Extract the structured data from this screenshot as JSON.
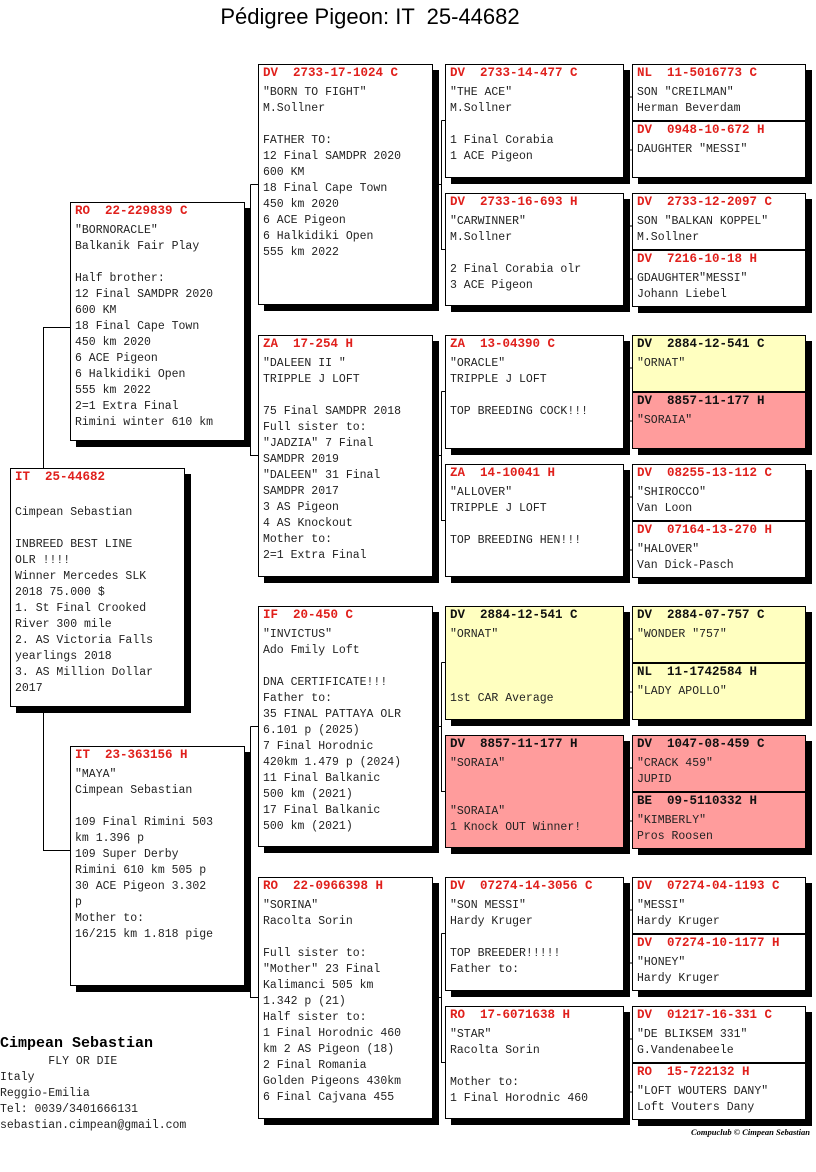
{
  "title": "Pédigree Pigeon: IT  25-44682",
  "colors": {
    "ring_red": "#e0201c",
    "yellow": "#ffffc0",
    "pink": "#ff9c9c"
  },
  "boxes": [
    {
      "id": "subject",
      "ring": "IT  25-44682",
      "ring_color": "red",
      "bg": "white",
      "lines": [
        "",
        "Cimpean Sebastian",
        "",
        "INBREED BEST LINE",
        "OLR !!!!",
        "Winner Mercedes SLK",
        "2018 75.000 $",
        "1. St Final Crooked",
        "River 300 mile",
        "2. AS Victoria Falls",
        "yearlings 2018",
        "3. AS Million Dollar",
        "2017"
      ]
    },
    {
      "id": "sire",
      "ring": "RO  22-229839 C",
      "ring_color": "red",
      "bg": "white",
      "lines": [
        "\"BORNORACLE\"",
        "Balkanik Fair Play",
        "",
        "Half brother:",
        "12 Final SAMDPR 2020",
        "600 KM",
        "18 Final Cape Town",
        "450 km 2020",
        "6 ACE Pigeon",
        "6 Halkidiki Open",
        "555 km 2022",
        "2=1 Extra Final",
        "Rimini winter 610 km"
      ]
    },
    {
      "id": "dam",
      "ring": "IT  23-363156 H",
      "ring_color": "red",
      "bg": "white",
      "lines": [
        "\"MAYA\"",
        "Cimpean Sebastian",
        "",
        "109 Final Rimini 503",
        "km 1.396 p",
        "109 Super Derby",
        "Rimini 610 km 505 p",
        "30 ACE Pigeon 3.302",
        "p",
        "Mother to:",
        "16/215 km 1.818 pige"
      ]
    },
    {
      "id": "ss",
      "ring": "DV  2733-17-1024 C",
      "ring_color": "red",
      "bg": "white",
      "lines": [
        "\"BORN TO FIGHT\"",
        "M.Sollner",
        "",
        "FATHER TO:",
        "12 Final SAMDPR 2020",
        "600 KM",
        "18 Final Cape Town",
        "450 km 2020",
        "6 ACE Pigeon",
        "6 Halkidiki Open",
        "555 km 2022"
      ]
    },
    {
      "id": "sd",
      "ring": "ZA  17-254 H",
      "ring_color": "red",
      "bg": "white",
      "lines": [
        "\"DALEEN II \"",
        "TRIPPLE J LOFT",
        "",
        "75 Final SAMDPR 2018",
        "Full sister to:",
        "\"JADZIA\" 7 Final",
        "SAMDPR 2019",
        "\"DALEEN\" 31 Final",
        "SAMDPR 2017",
        "3 AS Pigeon",
        "4 AS Knockout",
        "Mother to:",
        "2=1 Extra Final"
      ]
    },
    {
      "id": "ds",
      "ring": "IF  20-450 C",
      "ring_color": "red",
      "bg": "white",
      "lines": [
        "\"INVICTUS\"",
        "Ado Fmily Loft",
        "",
        "DNA CERTIFICATE!!!",
        "Father to:",
        "35 FINAL PATTAYA OLR",
        "6.101 p (2025)",
        "7 Final Horodnic",
        "420km 1.479 p (2024)",
        "11 Final Balkanic",
        "500 km (2021)",
        "17 Final Balkanic",
        "500 km (2021)"
      ]
    },
    {
      "id": "dd",
      "ring": "RO  22-0966398 H",
      "ring_color": "red",
      "bg": "white",
      "lines": [
        "\"SORINA\"",
        "Racolta Sorin",
        "",
        "Full sister to:",
        "\"Mother\" 23 Final",
        "Kalimanci 505 km",
        "1.342 p (21)",
        "Half sister to:",
        "1 Final Horodnic 460",
        "km 2 AS Pigeon (18)",
        "2 Final Romania",
        "Golden Pigeons 430km",
        "6 Final Cajvana 455"
      ]
    },
    {
      "id": "sss",
      "ring": "DV  2733-14-477 C",
      "ring_color": "red",
      "bg": "white",
      "lines": [
        "\"THE ACE\"",
        "M.Sollner",
        "",
        "1 Final Corabia",
        "1 ACE Pigeon"
      ]
    },
    {
      "id": "ssd",
      "ring": "DV  2733-16-693 H",
      "ring_color": "red",
      "bg": "white",
      "lines": [
        "\"CARWINNER\"",
        "M.Sollner",
        "",
        "2 Final Corabia olr",
        "3 ACE Pigeon"
      ]
    },
    {
      "id": "sds",
      "ring": "ZA  13-04390 C",
      "ring_color": "red",
      "bg": "white",
      "lines": [
        "\"ORACLE\"",
        "TRIPPLE J LOFT",
        "",
        "TOP BREEDING COCK!!!"
      ]
    },
    {
      "id": "sdd",
      "ring": "ZA  14-10041 H",
      "ring_color": "red",
      "bg": "white",
      "lines": [
        "\"ALLOVER\"",
        "TRIPPLE J LOFT",
        "",
        "TOP BREEDING HEN!!!"
      ]
    },
    {
      "id": "dss",
      "ring": "DV  2884-12-541 C",
      "ring_color": "black",
      "bg": "yellow",
      "lines": [
        "\"ORNAT\"",
        "",
        "",
        "",
        "1st CAR Average"
      ]
    },
    {
      "id": "dsd",
      "ring": "DV  8857-11-177 H",
      "ring_color": "black",
      "bg": "pink",
      "lines": [
        "\"SORAIA\"",
        "",
        "",
        "\"SORAIA\"",
        "1 Knock OUT Winner!"
      ]
    },
    {
      "id": "dds",
      "ring": "DV  07274-14-3056 C",
      "ring_color": "red",
      "bg": "white",
      "lines": [
        "\"SON MESSI\"",
        "Hardy Kruger",
        "",
        "TOP BREEDER!!!!!",
        "Father to:"
      ]
    },
    {
      "id": "ddd",
      "ring": "RO  17-6071638 H",
      "ring_color": "red",
      "bg": "white",
      "lines": [
        "\"STAR\"",
        "Racolta Sorin",
        "",
        "Mother to:",
        "1 Final Horodnic 460"
      ]
    },
    {
      "id": "ssss",
      "ring": "NL  11-5016773 C",
      "ring_color": "red",
      "bg": "white",
      "lines": [
        "SON \"CREILMAN\"",
        "Herman Beverdam"
      ]
    },
    {
      "id": "sssd",
      "ring": "DV  0948-10-672 H",
      "ring_color": "red",
      "bg": "white",
      "lines": [
        "DAUGHTER \"MESSI\""
      ]
    },
    {
      "id": "ssds",
      "ring": "DV  2733-12-2097 C",
      "ring_color": "red",
      "bg": "white",
      "lines": [
        "SON \"BALKAN KOPPEL\"",
        "M.Sollner"
      ]
    },
    {
      "id": "ssdd",
      "ring": "DV  7216-10-18 H",
      "ring_color": "red",
      "bg": "white",
      "lines": [
        "GDAUGHTER\"MESSI\"",
        "Johann Liebel"
      ]
    },
    {
      "id": "sdss",
      "ring": "DV  2884-12-541 C",
      "ring_color": "black",
      "bg": "yellow",
      "lines": [
        "\"ORNAT\""
      ]
    },
    {
      "id": "sdsd",
      "ring": "DV  8857-11-177 H",
      "ring_color": "black",
      "bg": "pink",
      "lines": [
        "\"SORAIA\""
      ]
    },
    {
      "id": "sdds",
      "ring": "DV  08255-13-112 C",
      "ring_color": "red",
      "bg": "white",
      "lines": [
        "\"SHIROCCO\"",
        "Van Loon"
      ]
    },
    {
      "id": "sddd",
      "ring": "DV  07164-13-270 H",
      "ring_color": "red",
      "bg": "white",
      "lines": [
        "\"HALOVER\"",
        "Van Dick-Pasch"
      ]
    },
    {
      "id": "dsss",
      "ring": "DV  2884-07-757 C",
      "ring_color": "black",
      "bg": "yellow",
      "lines": [
        "\"WONDER \"757\""
      ]
    },
    {
      "id": "dssd",
      "ring": "NL  11-1742584 H",
      "ring_color": "black",
      "bg": "yellow",
      "lines": [
        "\"LADY APOLLO\""
      ]
    },
    {
      "id": "dsds",
      "ring": "DV  1047-08-459 C",
      "ring_color": "black",
      "bg": "pink",
      "lines": [
        "\"CRACK 459\"",
        "JUPID"
      ]
    },
    {
      "id": "dsdd",
      "ring": "BE  09-5110332 H",
      "ring_color": "black",
      "bg": "pink",
      "lines": [
        "\"KIMBERLY\"",
        "Pros Roosen"
      ]
    },
    {
      "id": "ddss",
      "ring": "DV  07274-04-1193 C",
      "ring_color": "red",
      "bg": "white",
      "lines": [
        "\"MESSI\"",
        "Hardy Kruger"
      ]
    },
    {
      "id": "ddsd",
      "ring": "DV  07274-10-1177 H",
      "ring_color": "red",
      "bg": "white",
      "lines": [
        "\"HONEY\"",
        "Hardy Kruger"
      ]
    },
    {
      "id": "ddds",
      "ring": "DV  01217-16-331 C",
      "ring_color": "red",
      "bg": "white",
      "lines": [
        "\"DE BLIKSEM 331\"",
        "G.Vandenabeele"
      ]
    },
    {
      "id": "dddd",
      "ring": "RO  15-722132 H",
      "ring_color": "red",
      "bg": "white",
      "lines": [
        "\"LOFT WOUTERS DANY\"",
        "Loft Vouters Dany"
      ]
    }
  ],
  "breeder": {
    "name": "Cimpean Sebastian",
    "motto": "       FLY OR DIE",
    "country": "Italy",
    "region": "Reggio-Emilia",
    "phone": "Tel: 0039/3401666131",
    "email": "sebastian.cimpean@gmail.com"
  },
  "copyright": "Compuclub © Cimpean Sebastian"
}
